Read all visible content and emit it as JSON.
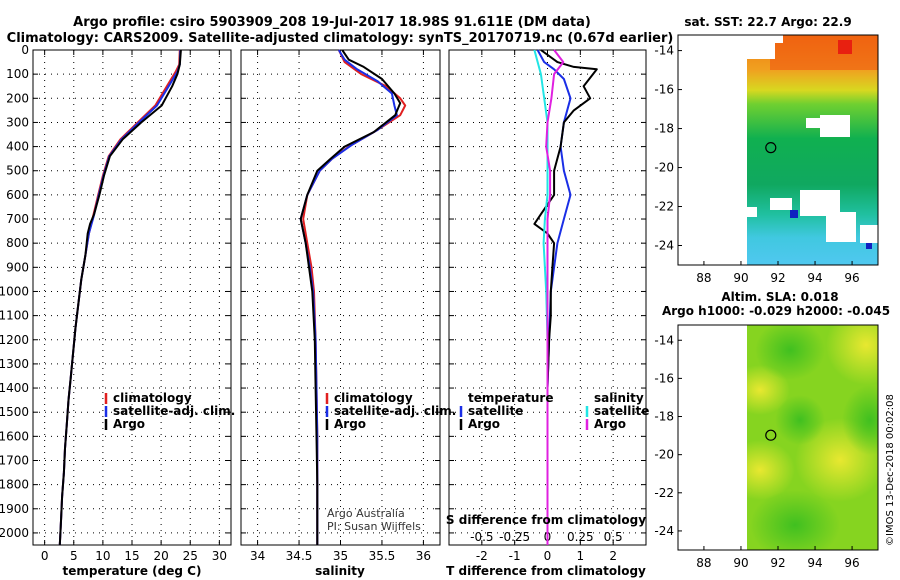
{
  "header": {
    "line1": "Argo profile: csiro 5903909_208 19-Jul-2017 18.98S 91.611E (DM data)",
    "line2": "Climatology: CARS2009. Satellite-adjusted climatology: synTS_20170719.nc (0.67d earlier)"
  },
  "colors": {
    "climatology": "#e02020",
    "satellite": "#1a2ee6",
    "argo": "#000000",
    "cyan": "#22e5e5",
    "magenta": "#e020e0"
  },
  "depth_axis": {
    "ticks": [
      "0",
      "100",
      "200",
      "300",
      "400",
      "500",
      "600",
      "700",
      "800",
      "900",
      "1000",
      "1100",
      "1200",
      "1300",
      "1400",
      "1500",
      "1600",
      "1700",
      "1800",
      "1900",
      "2000"
    ],
    "range": [
      0,
      2050
    ]
  },
  "credits": {
    "line1": "Argo Australia",
    "line2": "PI: Susan Wijffels"
  },
  "imos_stamp": "©IMOS 13-Dec-2018 00:02:08",
  "chart_data": [
    {
      "type": "line",
      "id": "temperature",
      "xlabel": "temperature (deg C)",
      "xlim": [
        -2,
        32
      ],
      "xticks": [
        0,
        5,
        10,
        15,
        20,
        25,
        30
      ],
      "xtick_labels": [
        "0",
        "5",
        "10",
        "15",
        "20",
        "25",
        "30"
      ],
      "legend": {
        "placement": "bottom-right",
        "items": [
          "climatology",
          "satellite-adj. clim.",
          "Argo"
        ]
      },
      "series": [
        {
          "name": "climatology",
          "color_key": "climatology",
          "points": [
            [
              23.2,
              0
            ],
            [
              23.1,
              60
            ],
            [
              22.5,
              90
            ],
            [
              21,
              150
            ],
            [
              19,
              230
            ],
            [
              16,
              300
            ],
            [
              13,
              370
            ],
            [
              11,
              440
            ],
            [
              10,
              520
            ],
            [
              9.2,
              600
            ],
            [
              8.3,
              690
            ],
            [
              7.6,
              760
            ],
            [
              7,
              850
            ],
            [
              6.3,
              950
            ],
            [
              5.8,
              1050
            ],
            [
              5.3,
              1150
            ],
            [
              4.9,
              1250
            ],
            [
              4.5,
              1350
            ],
            [
              4.1,
              1450
            ],
            [
              3.8,
              1550
            ],
            [
              3.5,
              1650
            ],
            [
              3.3,
              1750
            ],
            [
              3,
              1850
            ],
            [
              2.8,
              1950
            ],
            [
              2.6,
              2050
            ]
          ]
        },
        {
          "name": "satellite-adj. clim.",
          "color_key": "satellite",
          "points": [
            [
              23.3,
              0
            ],
            [
              23.2,
              60
            ],
            [
              22.8,
              90
            ],
            [
              21.3,
              150
            ],
            [
              19.3,
              230
            ],
            [
              16.2,
              300
            ],
            [
              13.2,
              370
            ],
            [
              11.1,
              440
            ],
            [
              10.1,
              520
            ],
            [
              9.3,
              600
            ],
            [
              8.4,
              690
            ],
            [
              7.6,
              760
            ],
            [
              7,
              850
            ],
            [
              6.3,
              950
            ],
            [
              5.8,
              1050
            ],
            [
              5.3,
              1150
            ],
            [
              4.9,
              1250
            ],
            [
              4.5,
              1350
            ],
            [
              4.1,
              1450
            ],
            [
              3.8,
              1550
            ],
            [
              3.5,
              1650
            ],
            [
              3.3,
              1750
            ],
            [
              3,
              1850
            ],
            [
              2.8,
              1950
            ],
            [
              2.6,
              2050
            ]
          ]
        },
        {
          "name": "Argo",
          "color_key": "argo",
          "points": [
            [
              23.4,
              0
            ],
            [
              23.2,
              60
            ],
            [
              22.8,
              100
            ],
            [
              21.9,
              150
            ],
            [
              20.1,
              230
            ],
            [
              16.6,
              300
            ],
            [
              13.4,
              370
            ],
            [
              11.2,
              440
            ],
            [
              10.2,
              520
            ],
            [
              9.4,
              600
            ],
            [
              8.5,
              680
            ],
            [
              7.8,
              720
            ],
            [
              7.4,
              760
            ],
            [
              7,
              850
            ],
            [
              6.3,
              950
            ],
            [
              5.8,
              1050
            ],
            [
              5.3,
              1150
            ],
            [
              4.9,
              1250
            ],
            [
              4.5,
              1350
            ],
            [
              4.1,
              1450
            ],
            [
              3.8,
              1550
            ],
            [
              3.5,
              1650
            ],
            [
              3.3,
              1750
            ],
            [
              3,
              1850
            ],
            [
              2.8,
              1950
            ],
            [
              2.6,
              2050
            ]
          ]
        }
      ]
    },
    {
      "type": "line",
      "id": "salinity",
      "xlabel": "salinity",
      "xlim": [
        33.8,
        36.2
      ],
      "xticks": [
        34,
        34.5,
        35,
        35.5,
        36
      ],
      "xtick_labels": [
        "34",
        "34.5",
        "35",
        "35.5",
        "36"
      ],
      "legend": {
        "placement": "bottom-right",
        "items": [
          "climatology",
          "satellite-adj. clim.",
          "Argo"
        ]
      },
      "series": [
        {
          "name": "climatology",
          "color_key": "climatology",
          "points": [
            [
              34.98,
              0
            ],
            [
              35.05,
              50
            ],
            [
              35.25,
              100
            ],
            [
              35.55,
              150
            ],
            [
              35.72,
              200
            ],
            [
              35.78,
              230
            ],
            [
              35.72,
              270
            ],
            [
              35.45,
              330
            ],
            [
              35.1,
              400
            ],
            [
              34.9,
              450
            ],
            [
              34.75,
              500
            ],
            [
              34.6,
              600
            ],
            [
              34.55,
              700
            ],
            [
              34.6,
              800
            ],
            [
              34.65,
              900
            ],
            [
              34.68,
              1000
            ],
            [
              34.7,
              1200
            ],
            [
              34.71,
              1400
            ],
            [
              34.72,
              1600
            ],
            [
              34.72,
              1800
            ],
            [
              34.72,
              2050
            ]
          ]
        },
        {
          "name": "satellite-adj. clim.",
          "color_key": "satellite",
          "points": [
            [
              34.98,
              0
            ],
            [
              35.05,
              40
            ],
            [
              35.2,
              80
            ],
            [
              35.45,
              130
            ],
            [
              35.62,
              180
            ],
            [
              35.65,
              230
            ],
            [
              35.68,
              270
            ],
            [
              35.45,
              330
            ],
            [
              35.15,
              390
            ],
            [
              34.9,
              450
            ],
            [
              34.75,
              500
            ],
            [
              34.6,
              600
            ],
            [
              34.52,
              700
            ],
            [
              34.58,
              800
            ],
            [
              34.63,
              900
            ],
            [
              34.67,
              1000
            ],
            [
              34.7,
              1200
            ],
            [
              34.71,
              1400
            ],
            [
              34.72,
              1600
            ],
            [
              34.72,
              1800
            ],
            [
              34.72,
              2050
            ]
          ]
        },
        {
          "name": "Argo",
          "color_key": "argo",
          "points": [
            [
              35.02,
              0
            ],
            [
              35.1,
              40
            ],
            [
              35.28,
              70
            ],
            [
              35.5,
              120
            ],
            [
              35.65,
              180
            ],
            [
              35.72,
              220
            ],
            [
              35.66,
              270
            ],
            [
              35.4,
              340
            ],
            [
              35.05,
              400
            ],
            [
              34.88,
              450
            ],
            [
              34.72,
              500
            ],
            [
              34.6,
              600
            ],
            [
              34.52,
              700
            ],
            [
              34.58,
              800
            ],
            [
              34.62,
              900
            ],
            [
              34.66,
              1000
            ],
            [
              34.69,
              1200
            ],
            [
              34.7,
              1400
            ],
            [
              34.71,
              1600
            ],
            [
              34.72,
              1800
            ],
            [
              34.72,
              2050
            ]
          ]
        }
      ]
    },
    {
      "type": "line",
      "id": "difference",
      "xlabel": "T difference from climatology",
      "xlim": [
        -3,
        3
      ],
      "xticks": [
        -2,
        -1,
        0,
        1,
        2
      ],
      "xtick_labels": [
        "-2",
        "-1",
        "0",
        "1",
        "2"
      ],
      "secondary_axis": {
        "label": "S difference from climatology",
        "ticks": [
          -0.5,
          -0.25,
          0,
          0.25,
          0.5
        ],
        "tick_labels": [
          "-0.5",
          "-0.25",
          "0",
          "0.25",
          "0.5"
        ],
        "scale": 4
      },
      "legend": {
        "temperature_title": "temperature",
        "salinity_title": "salinity",
        "temperature_items": [
          "satellite",
          "Argo"
        ],
        "salinity_items": [
          "satellite",
          "Argo"
        ]
      },
      "series": [
        {
          "name": "T satellite",
          "color_key": "satellite",
          "points": [
            [
              -0.3,
              0
            ],
            [
              -0.1,
              50
            ],
            [
              0.2,
              80
            ],
            [
              0.5,
              120
            ],
            [
              0.7,
              200
            ],
            [
              0.5,
              300
            ],
            [
              0.4,
              400
            ],
            [
              0.5,
              500
            ],
            [
              0.7,
              600
            ],
            [
              0.5,
              700
            ],
            [
              0.3,
              800
            ],
            [
              0.2,
              900
            ],
            [
              0.1,
              1000
            ],
            [
              0.05,
              1200
            ],
            [
              0,
              1400
            ],
            [
              0,
              1600
            ],
            [
              0,
              2050
            ]
          ]
        },
        {
          "name": "T Argo",
          "color_key": "argo",
          "points": [
            [
              -0.2,
              0
            ],
            [
              0.3,
              50
            ],
            [
              0.8,
              70
            ],
            [
              1.5,
              80
            ],
            [
              1.1,
              150
            ],
            [
              1.3,
              200
            ],
            [
              0.8,
              250
            ],
            [
              0.5,
              300
            ],
            [
              0.4,
              400
            ],
            [
              0.2,
              500
            ],
            [
              0.2,
              600
            ],
            [
              -0.2,
              680
            ],
            [
              -0.4,
              720
            ],
            [
              0,
              760
            ],
            [
              0.2,
              800
            ],
            [
              0.15,
              900
            ],
            [
              0.1,
              1000
            ],
            [
              0.1,
              1100
            ],
            [
              0.05,
              1200
            ],
            [
              0,
              1400
            ],
            [
              0,
              1600
            ],
            [
              0,
              2050
            ]
          ]
        },
        {
          "name": "S satellite",
          "color_key": "cyan",
          "points": [
            [
              -0.1,
              0
            ],
            [
              -0.05,
              100
            ],
            [
              0,
              300
            ],
            [
              0,
              500
            ],
            [
              0,
              600
            ],
            [
              -0.02,
              700
            ],
            [
              -0.03,
              800
            ],
            [
              -0.02,
              900
            ],
            [
              -0.01,
              1000
            ],
            [
              0,
              1200
            ],
            [
              0,
              1500
            ],
            [
              0,
              2050
            ]
          ]
        },
        {
          "name": "S Argo",
          "color_key": "magenta",
          "points": [
            [
              0.05,
              0
            ],
            [
              0.12,
              50
            ],
            [
              0.05,
              100
            ],
            [
              0.03,
              200
            ],
            [
              0,
              300
            ],
            [
              -0.01,
              400
            ],
            [
              0.02,
              500
            ],
            [
              0.02,
              600
            ],
            [
              0,
              700
            ],
            [
              0,
              800
            ],
            [
              0,
              1000
            ],
            [
              0,
              1200
            ],
            [
              0,
              1500
            ],
            [
              0,
              2050
            ]
          ]
        }
      ]
    },
    {
      "type": "heatmap",
      "id": "sst_map",
      "title": "sat. SST: 22.7 Argo: 22.9",
      "xlim": [
        86.6,
        97.4
      ],
      "ylim": [
        -25,
        -13.2
      ],
      "xticks": [
        88,
        90,
        92,
        94,
        96
      ],
      "yticks": [
        -14,
        -16,
        -18,
        -20,
        -22,
        -24
      ],
      "marker": {
        "lon": 91.611,
        "lat": -18.98
      },
      "data_extent": [
        90,
        97.4,
        -25,
        -13.2
      ]
    },
    {
      "type": "heatmap",
      "id": "sla_map",
      "title_line1": "Altim. SLA: 0.018",
      "title_line2": "Argo h1000: -0.029 h2000: -0.045",
      "xlim": [
        86.6,
        97.4
      ],
      "ylim": [
        -25,
        -13.2
      ],
      "xticks": [
        88,
        90,
        92,
        94,
        96
      ],
      "yticks": [
        -14,
        -16,
        -18,
        -20,
        -22,
        -24
      ],
      "marker": {
        "lon": 91.611,
        "lat": -18.98
      },
      "data_extent": [
        90,
        97.4,
        -25,
        -13.2
      ]
    }
  ]
}
